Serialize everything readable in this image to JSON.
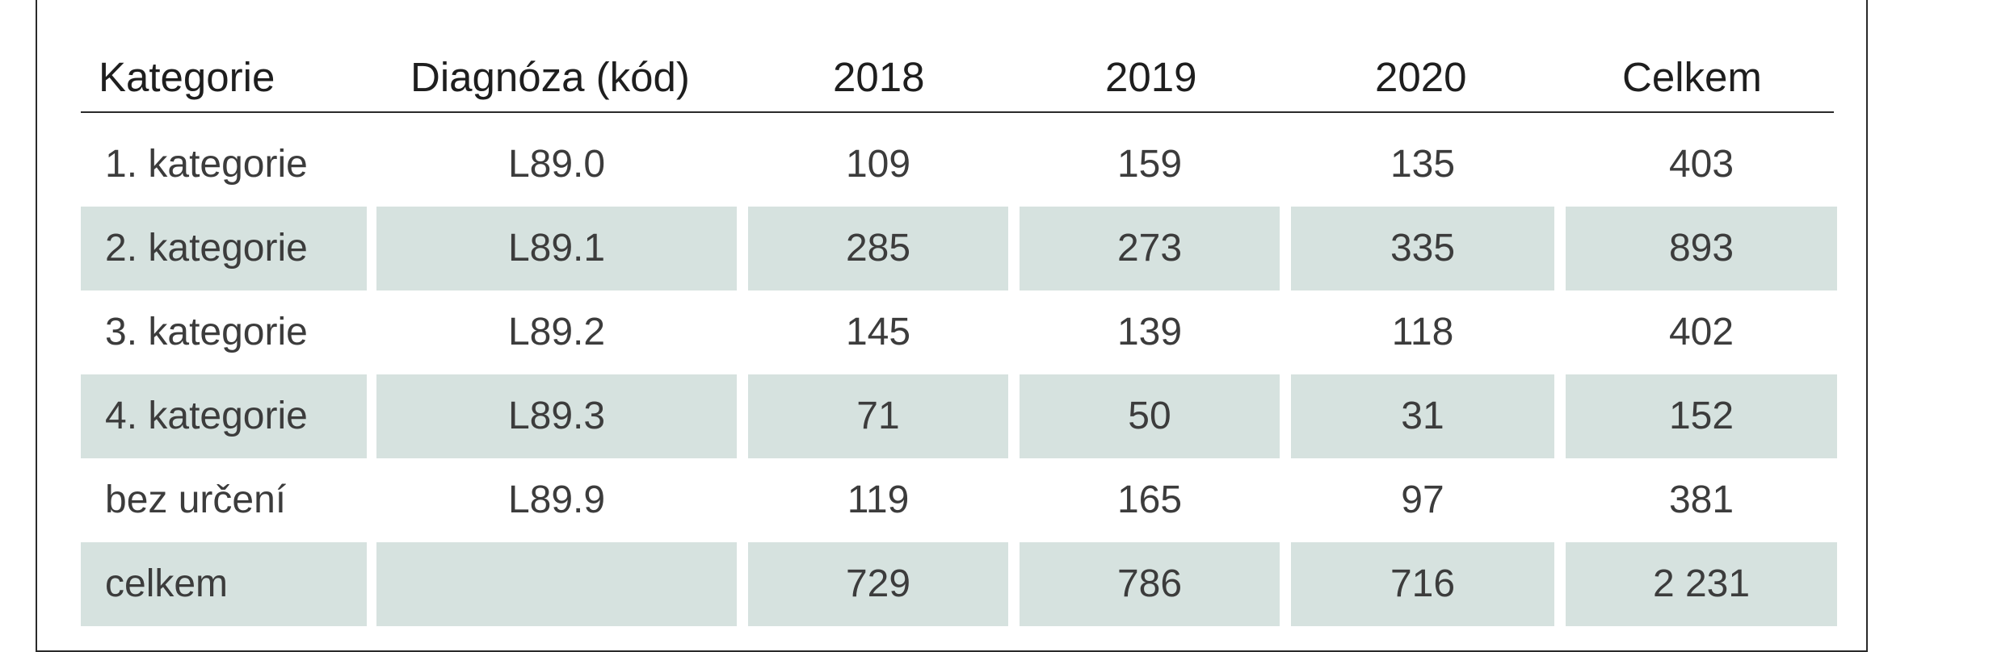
{
  "table": {
    "headers": [
      "Kategorie",
      "Diagnóza (kód)",
      "2018",
      "2019",
      "2020",
      "Celkem"
    ],
    "rows": [
      {
        "kategorie": "1. kategorie",
        "diagnoza": "L89.0",
        "y2018": "109",
        "y2019": "159",
        "y2020": "135",
        "celkem": "403"
      },
      {
        "kategorie": "2. kategorie",
        "diagnoza": "L89.1",
        "y2018": "285",
        "y2019": "273",
        "y2020": "335",
        "celkem": "893"
      },
      {
        "kategorie": "3. kategorie",
        "diagnoza": "L89.2",
        "y2018": "145",
        "y2019": "139",
        "y2020": "118",
        "celkem": "402"
      },
      {
        "kategorie": "4. kategorie",
        "diagnoza": "L89.3",
        "y2018": "71",
        "y2019": "50",
        "y2020": "31",
        "celkem": "152"
      },
      {
        "kategorie": "bez určení",
        "diagnoza": "L89.9",
        "y2018": "119",
        "y2019": "165",
        "y2020": "97",
        "celkem": "381"
      },
      {
        "kategorie": "celkem",
        "diagnoza": "",
        "y2018": "729",
        "y2019": "786",
        "y2020": "716",
        "celkem": "2 231"
      }
    ]
  },
  "colors": {
    "row_shade": "#d6e2df",
    "rule": "#2a2a2a",
    "text": "#3c3c3c"
  }
}
